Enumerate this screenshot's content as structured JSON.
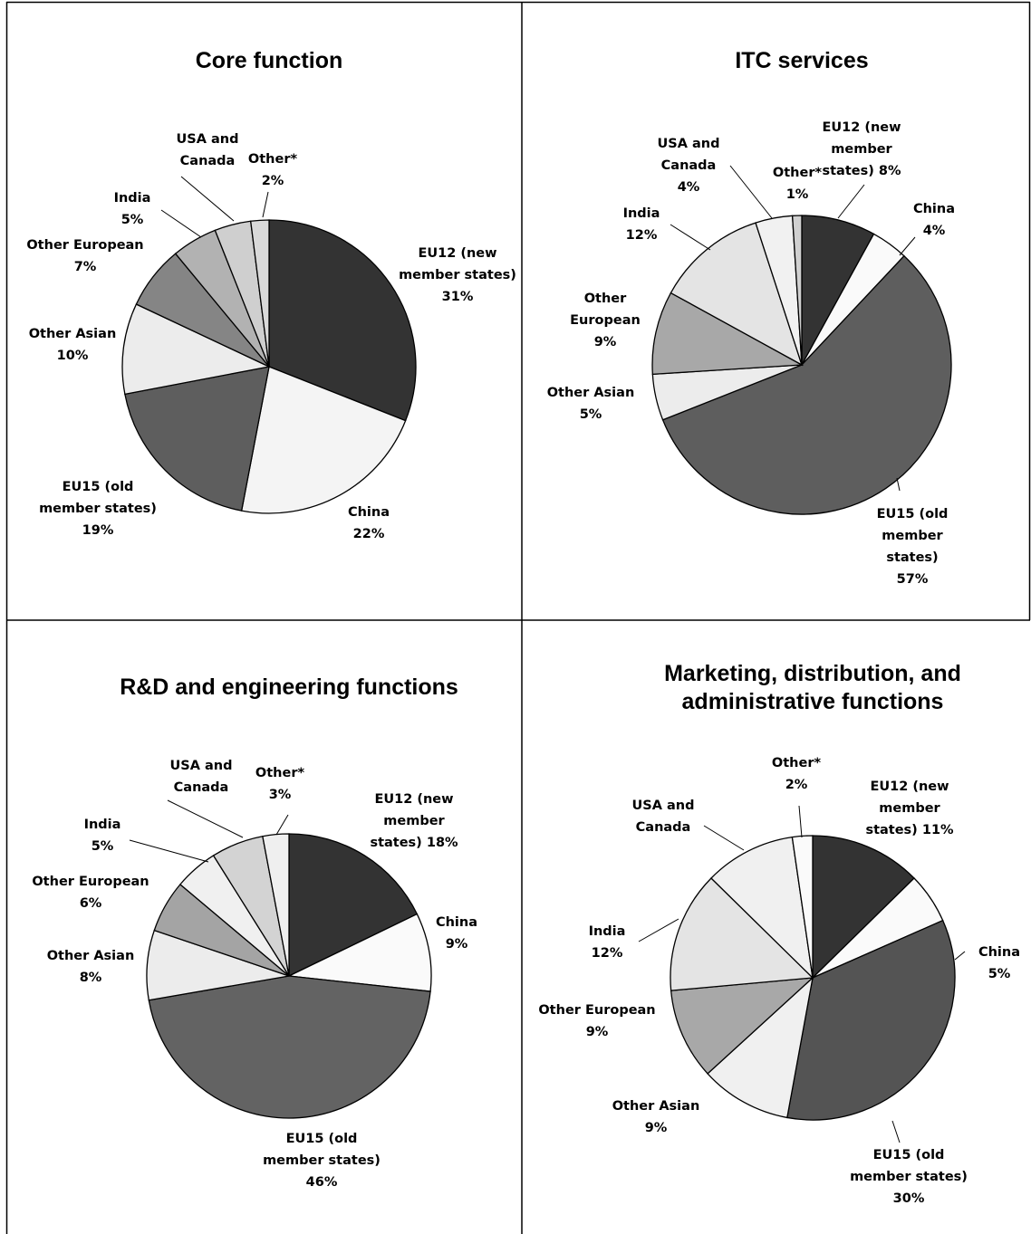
{
  "chart_data": [
    {
      "type": "pie",
      "title": [
        "Core function"
      ],
      "slices": [
        {
          "name": "EU12 (new member states)",
          "value": 31,
          "label": [
            "EU12 (new",
            "member states)",
            "31%"
          ],
          "color": "#333333"
        },
        {
          "name": "China",
          "value": 22,
          "label": [
            "China",
            "22%"
          ],
          "color": "#f4f4f4"
        },
        {
          "name": "EU15 (old member states)",
          "value": 19,
          "label": [
            "EU15 (old",
            "member states)",
            "19%"
          ],
          "color": "#5e5e5e"
        },
        {
          "name": "Other Asian",
          "value": 10,
          "label": [
            "Other Asian",
            "10%"
          ],
          "color": "#ececec"
        },
        {
          "name": "Other European",
          "value": 7,
          "label": [
            "Other European",
            "7%"
          ],
          "color": "#858585"
        },
        {
          "name": "India",
          "value": 5,
          "label": [
            "India",
            "5%"
          ],
          "color": "#b2b2b2"
        },
        {
          "name": "USA and Canada",
          "value": 4,
          "label": [
            "USA and",
            "Canada"
          ],
          "color": "#cfcfcf"
        },
        {
          "name": "Other*",
          "value": 2,
          "label": [
            "Other*",
            "2%"
          ],
          "color": "#d9d9d9"
        }
      ]
    },
    {
      "type": "pie",
      "title": [
        "ITC services"
      ],
      "slices": [
        {
          "name": "EU12 (new member states)",
          "value": 8,
          "label": [
            "EU12 (new",
            "member",
            "states) 8%"
          ],
          "color": "#333333"
        },
        {
          "name": "China",
          "value": 4,
          "label": [
            "China",
            "4%"
          ],
          "color": "#fafafa"
        },
        {
          "name": "EU15 (old member states)",
          "value": 57,
          "label": [
            "EU15 (old",
            "member",
            "states)",
            "57%"
          ],
          "color": "#5e5e5e"
        },
        {
          "name": "Other Asian",
          "value": 5,
          "label": [
            "Other Asian",
            "5%"
          ],
          "color": "#ececec"
        },
        {
          "name": "Other European",
          "value": 9,
          "label": [
            "Other",
            "European",
            "9%"
          ],
          "color": "#a8a8a8"
        },
        {
          "name": "India",
          "value": 12,
          "label": [
            "India",
            "12%"
          ],
          "color": "#e4e4e4"
        },
        {
          "name": "USA and Canada",
          "value": 4,
          "label": [
            "USA and",
            "Canada",
            "4%"
          ],
          "color": "#f1f1f1"
        },
        {
          "name": "Other*",
          "value": 1,
          "label": [
            "Other*",
            "1%"
          ],
          "color": "#d0d0d0"
        }
      ]
    },
    {
      "type": "pie",
      "title": [
        "R&D and engineering functions"
      ],
      "slices": [
        {
          "name": "EU12 (new member states)",
          "value": 18,
          "label": [
            "EU12 (new",
            "member",
            "states) 18%"
          ],
          "color": "#333333"
        },
        {
          "name": "China",
          "value": 9,
          "label": [
            "China",
            "9%"
          ],
          "color": "#fafafa"
        },
        {
          "name": "EU15 (old member states)",
          "value": 46,
          "label": [
            "EU15 (old",
            "member states)",
            "46%"
          ],
          "color": "#636363"
        },
        {
          "name": "Other Asian",
          "value": 8,
          "label": [
            "Other Asian",
            "8%"
          ],
          "color": "#ececec"
        },
        {
          "name": "Other European",
          "value": 6,
          "label": [
            "Other European",
            "6%"
          ],
          "color": "#a4a4a4"
        },
        {
          "name": "India",
          "value": 5,
          "label": [
            "India",
            "5%"
          ],
          "color": "#f0f0f0"
        },
        {
          "name": "USA and Canada",
          "value": 6,
          "label": [
            "USA and",
            "Canada"
          ],
          "color": "#d3d3d3"
        },
        {
          "name": "Other*",
          "value": 3,
          "label": [
            "Other*",
            "3%"
          ],
          "color": "#efefef"
        }
      ]
    },
    {
      "type": "pie",
      "title": [
        "Marketing, distribution, and",
        "administrative functions"
      ],
      "slices": [
        {
          "name": "EU12 (new member states)",
          "value": 11,
          "label": [
            "EU12 (new",
            "member",
            "states) 11%"
          ],
          "color": "#333333"
        },
        {
          "name": "China",
          "value": 5,
          "label": [
            "China",
            "5%"
          ],
          "color": "#fafafa"
        },
        {
          "name": "EU15 (old member states)",
          "value": 30,
          "label": [
            "EU15 (old",
            "member states)",
            "30%"
          ],
          "color": "#545454"
        },
        {
          "name": "Other Asian",
          "value": 9,
          "label": [
            "Other Asian",
            "9%"
          ],
          "color": "#f0f0f0"
        },
        {
          "name": "Other European",
          "value": 9,
          "label": [
            "Other European",
            "9%"
          ],
          "color": "#a8a8a8"
        },
        {
          "name": "India",
          "value": 12,
          "label": [
            "India",
            "12%"
          ],
          "color": "#e4e4e4"
        },
        {
          "name": "USA and Canada",
          "value": 9,
          "label": [
            "USA and",
            "Canada"
          ],
          "color": "#f0f0f0"
        },
        {
          "name": "Other*",
          "value": 2,
          "label": [
            "Other*",
            "2%"
          ],
          "color": "#fafafa"
        }
      ]
    }
  ]
}
